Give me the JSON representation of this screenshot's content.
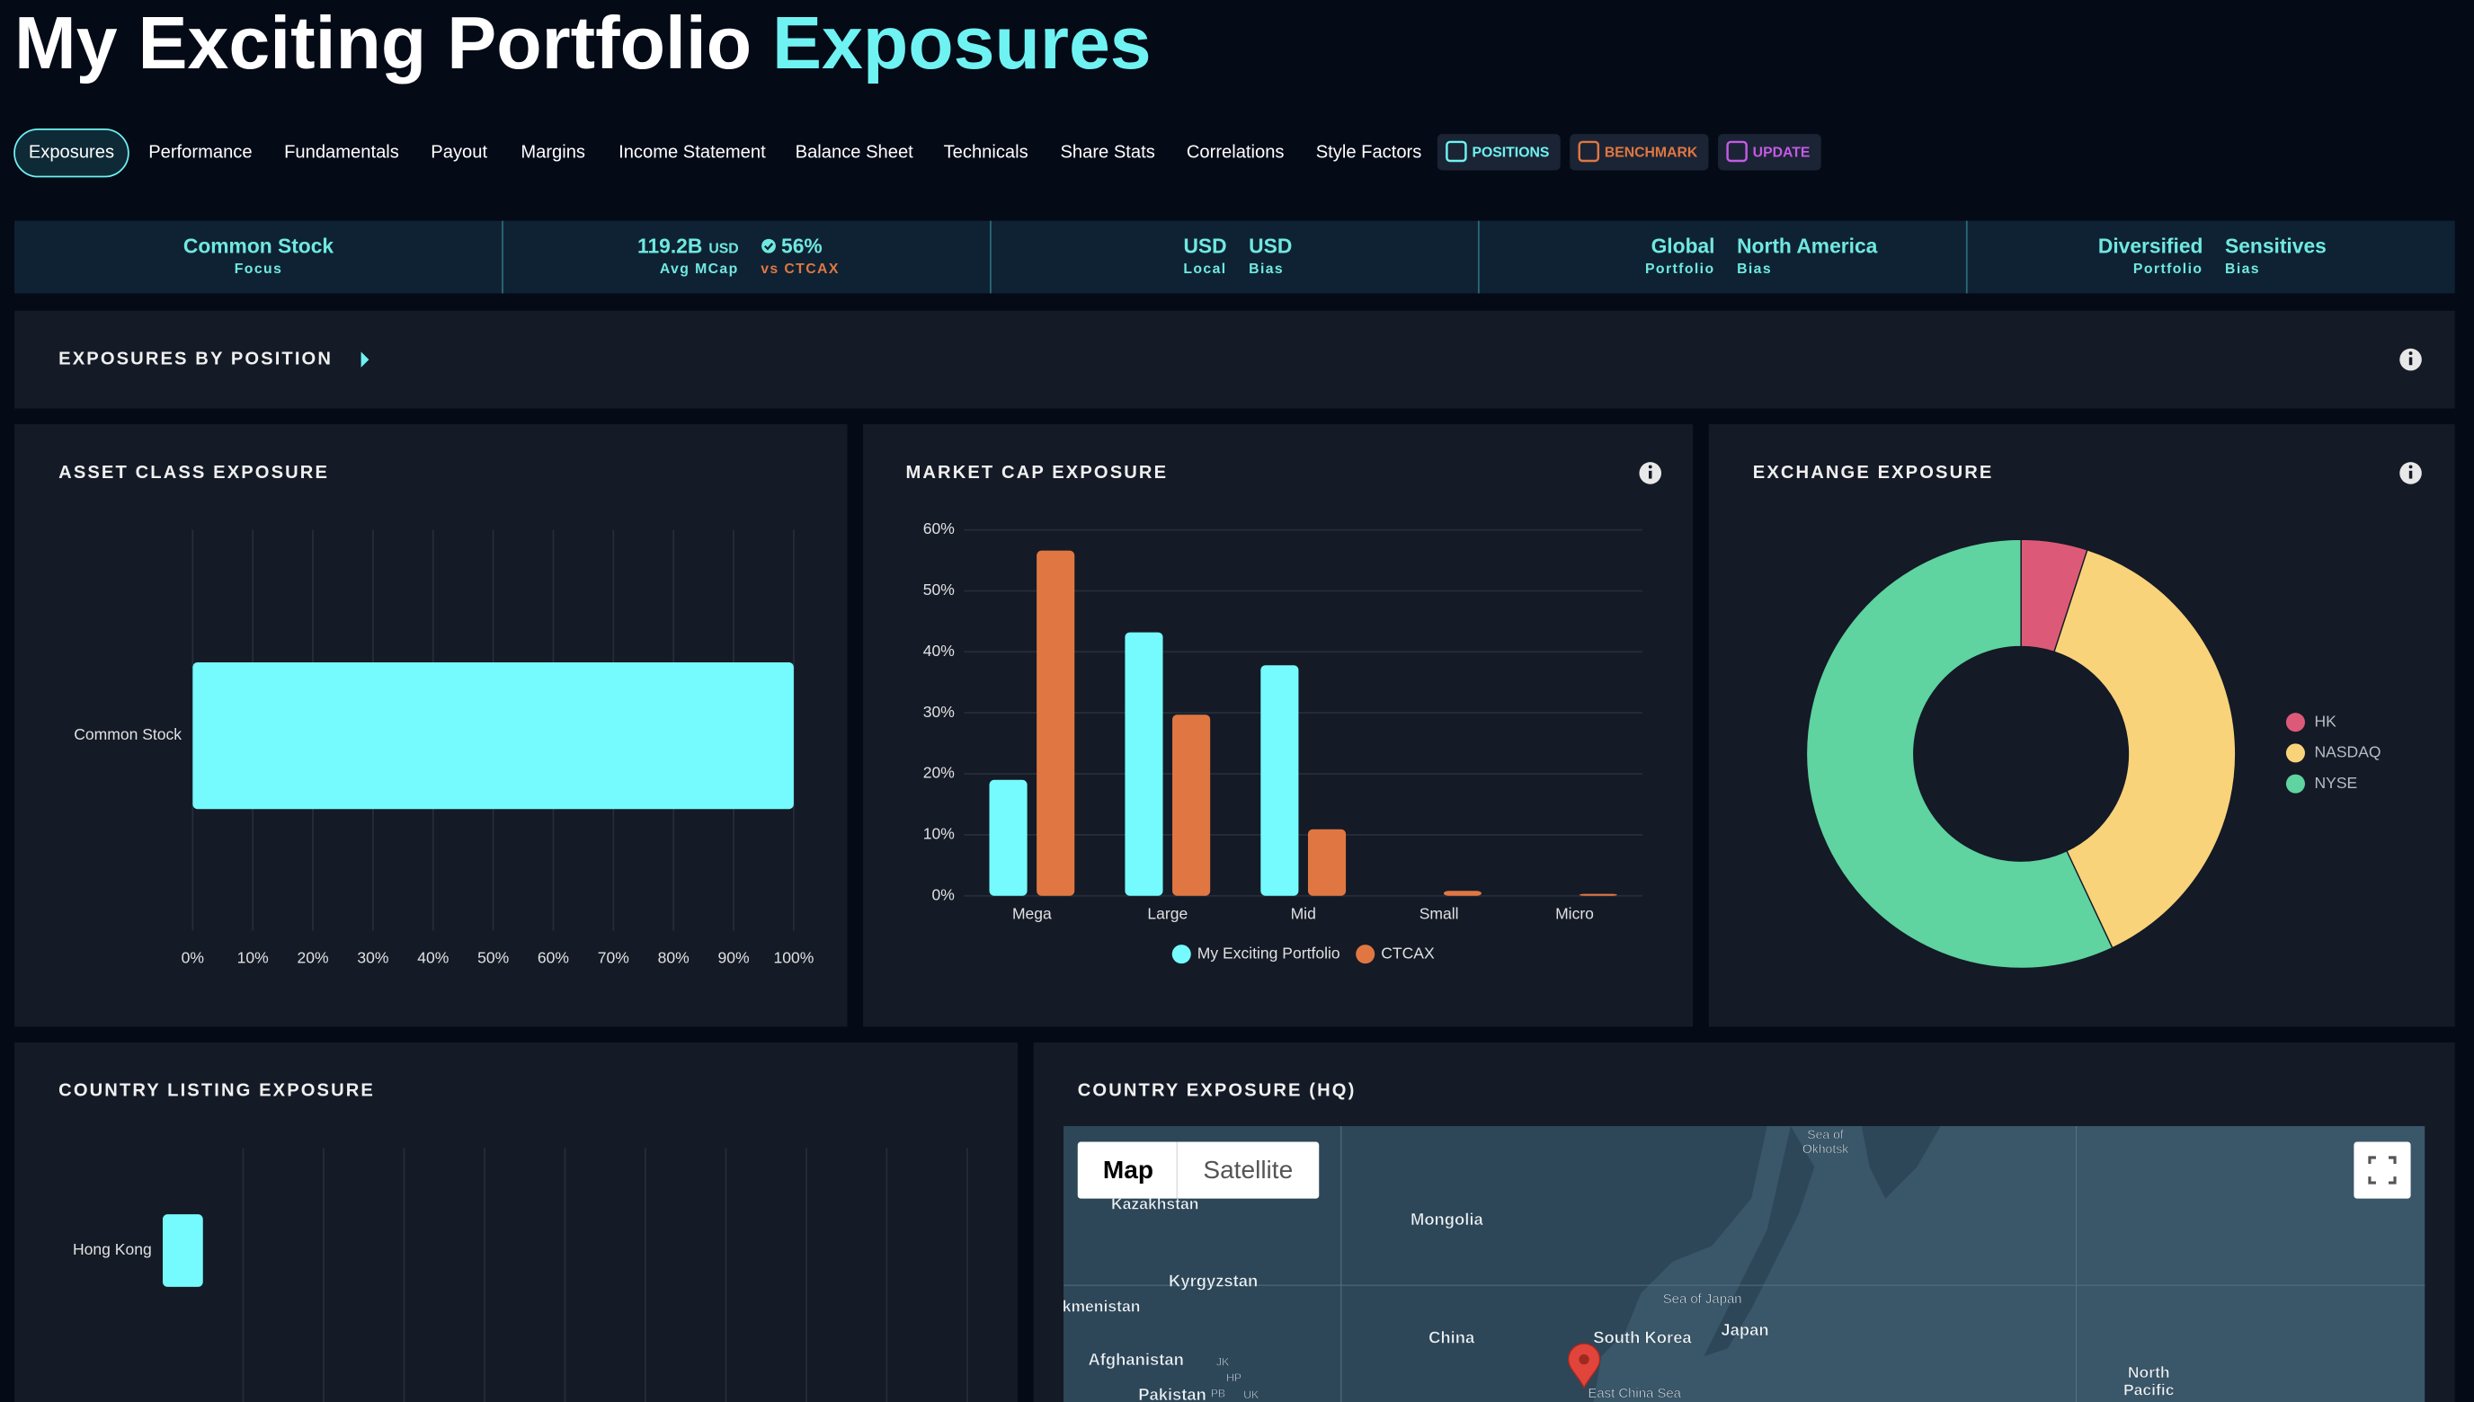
{
  "header": {
    "title": "My Exciting Portfolio",
    "highlight": "Exposures"
  },
  "tabs": [
    "Exposures",
    "Performance",
    "Fundamentals",
    "Payout",
    "Margins",
    "Income Statement",
    "Balance Sheet",
    "Technicals",
    "Share Stats",
    "Correlations",
    "Style Factors"
  ],
  "active_tab": 0,
  "buttons": [
    "POSITIONS",
    "BENCHMARK",
    "UPDATE"
  ],
  "summary": [
    {
      "items": [
        {
          "text": "Common Stock",
          "sub": "Focus"
        }
      ]
    },
    {
      "items": [
        {
          "text": "119.2B",
          "unit": "USD",
          "sub": "Avg MCap"
        },
        {
          "text": "56%",
          "sub": "vs CTCAX"
        }
      ]
    },
    {
      "items": [
        {
          "text": "USD",
          "sub": "Local"
        },
        {
          "text": "USD",
          "sub": "Bias"
        }
      ]
    },
    {
      "items": [
        {
          "text": "Global",
          "sub": "Portfolio"
        },
        {
          "text": "North America",
          "sub": "Bias"
        }
      ]
    },
    {
      "items": [
        {
          "text": "Diversified",
          "sub": "Portfolio"
        },
        {
          "text": "Sensitives",
          "sub": "Bias"
        }
      ]
    }
  ],
  "positions_section": "EXPOSURES BY POSITION",
  "chart_data": [
    {
      "type": "hbar",
      "title": "ASSET CLASS EXPOSURE",
      "categories": [
        "Common Stock"
      ],
      "values": [
        100
      ],
      "color": "#75fbfd",
      "xlim": [
        0,
        100
      ],
      "xticks": [
        {
          "value": 0,
          "label": "0%"
        },
        {
          "value": 10,
          "label": "10%"
        },
        {
          "value": 20,
          "label": "20%"
        },
        {
          "value": 30,
          "label": "30%"
        },
        {
          "value": 40,
          "label": "40%"
        },
        {
          "value": 50,
          "label": "50%"
        },
        {
          "value": 60,
          "label": "60%"
        },
        {
          "value": 70,
          "label": "70%"
        },
        {
          "value": 80,
          "label": "80%"
        },
        {
          "value": 90,
          "label": "90%"
        },
        {
          "value": 100,
          "label": "100%"
        }
      ],
      "grid": true
    },
    {
      "type": "bar",
      "title": "MARKET CAP EXPOSURE",
      "categories": [
        "Mega",
        "Large",
        "Mid",
        "Small",
        "Micro"
      ],
      "series": [
        {
          "name": "My Exciting Portfolio",
          "color": "#75fbfd",
          "values": [
            19,
            43.2,
            37.8,
            0,
            0
          ]
        },
        {
          "name": "CTCAX",
          "color": "#e07742",
          "values": [
            56.6,
            29.7,
            10.9,
            0.8,
            0.3
          ]
        }
      ],
      "ylim": [
        0,
        60
      ],
      "yticks": [
        {
          "value": 0,
          "label": "0%"
        },
        {
          "value": 10,
          "label": "10%"
        },
        {
          "value": 20,
          "label": "20%"
        },
        {
          "value": 30,
          "label": "30%"
        },
        {
          "value": 40,
          "label": "40%"
        },
        {
          "value": 50,
          "label": "50%"
        },
        {
          "value": 60,
          "label": "60%"
        }
      ],
      "grid": true,
      "legend": "bottom"
    },
    {
      "type": "donut",
      "title": "EXCHANGE EXPOSURE",
      "categories": [
        "HK",
        "NASDAQ",
        "NYSE"
      ],
      "values": [
        5,
        38,
        57
      ],
      "colors": [
        "#dc5a78",
        "#f8d37a",
        "#5fd3a0"
      ],
      "legend": "right"
    },
    {
      "type": "hbar",
      "title": "COUNTRY LISTING EXPOSURE",
      "categories": [
        "Hong Kong"
      ],
      "values": [
        5
      ],
      "color": "#75fbfd",
      "xlim": [
        0,
        100
      ],
      "grid": true
    }
  ],
  "map": {
    "title": "COUNTRY EXPOSURE (HQ)",
    "modes": [
      "Map",
      "Satellite"
    ],
    "labels": [
      "Sea of",
      "Okhotsk",
      "Kazakhstan",
      "Mongolia",
      "Kyrgyzstan",
      "kmenistan",
      "Sea of Japan",
      "Japan",
      "South Korea",
      "China",
      "Afghanistan",
      "JK",
      "HP",
      "PB",
      "UK",
      "Pakistan",
      "East China Sea",
      "North",
      "Pacific"
    ]
  }
}
